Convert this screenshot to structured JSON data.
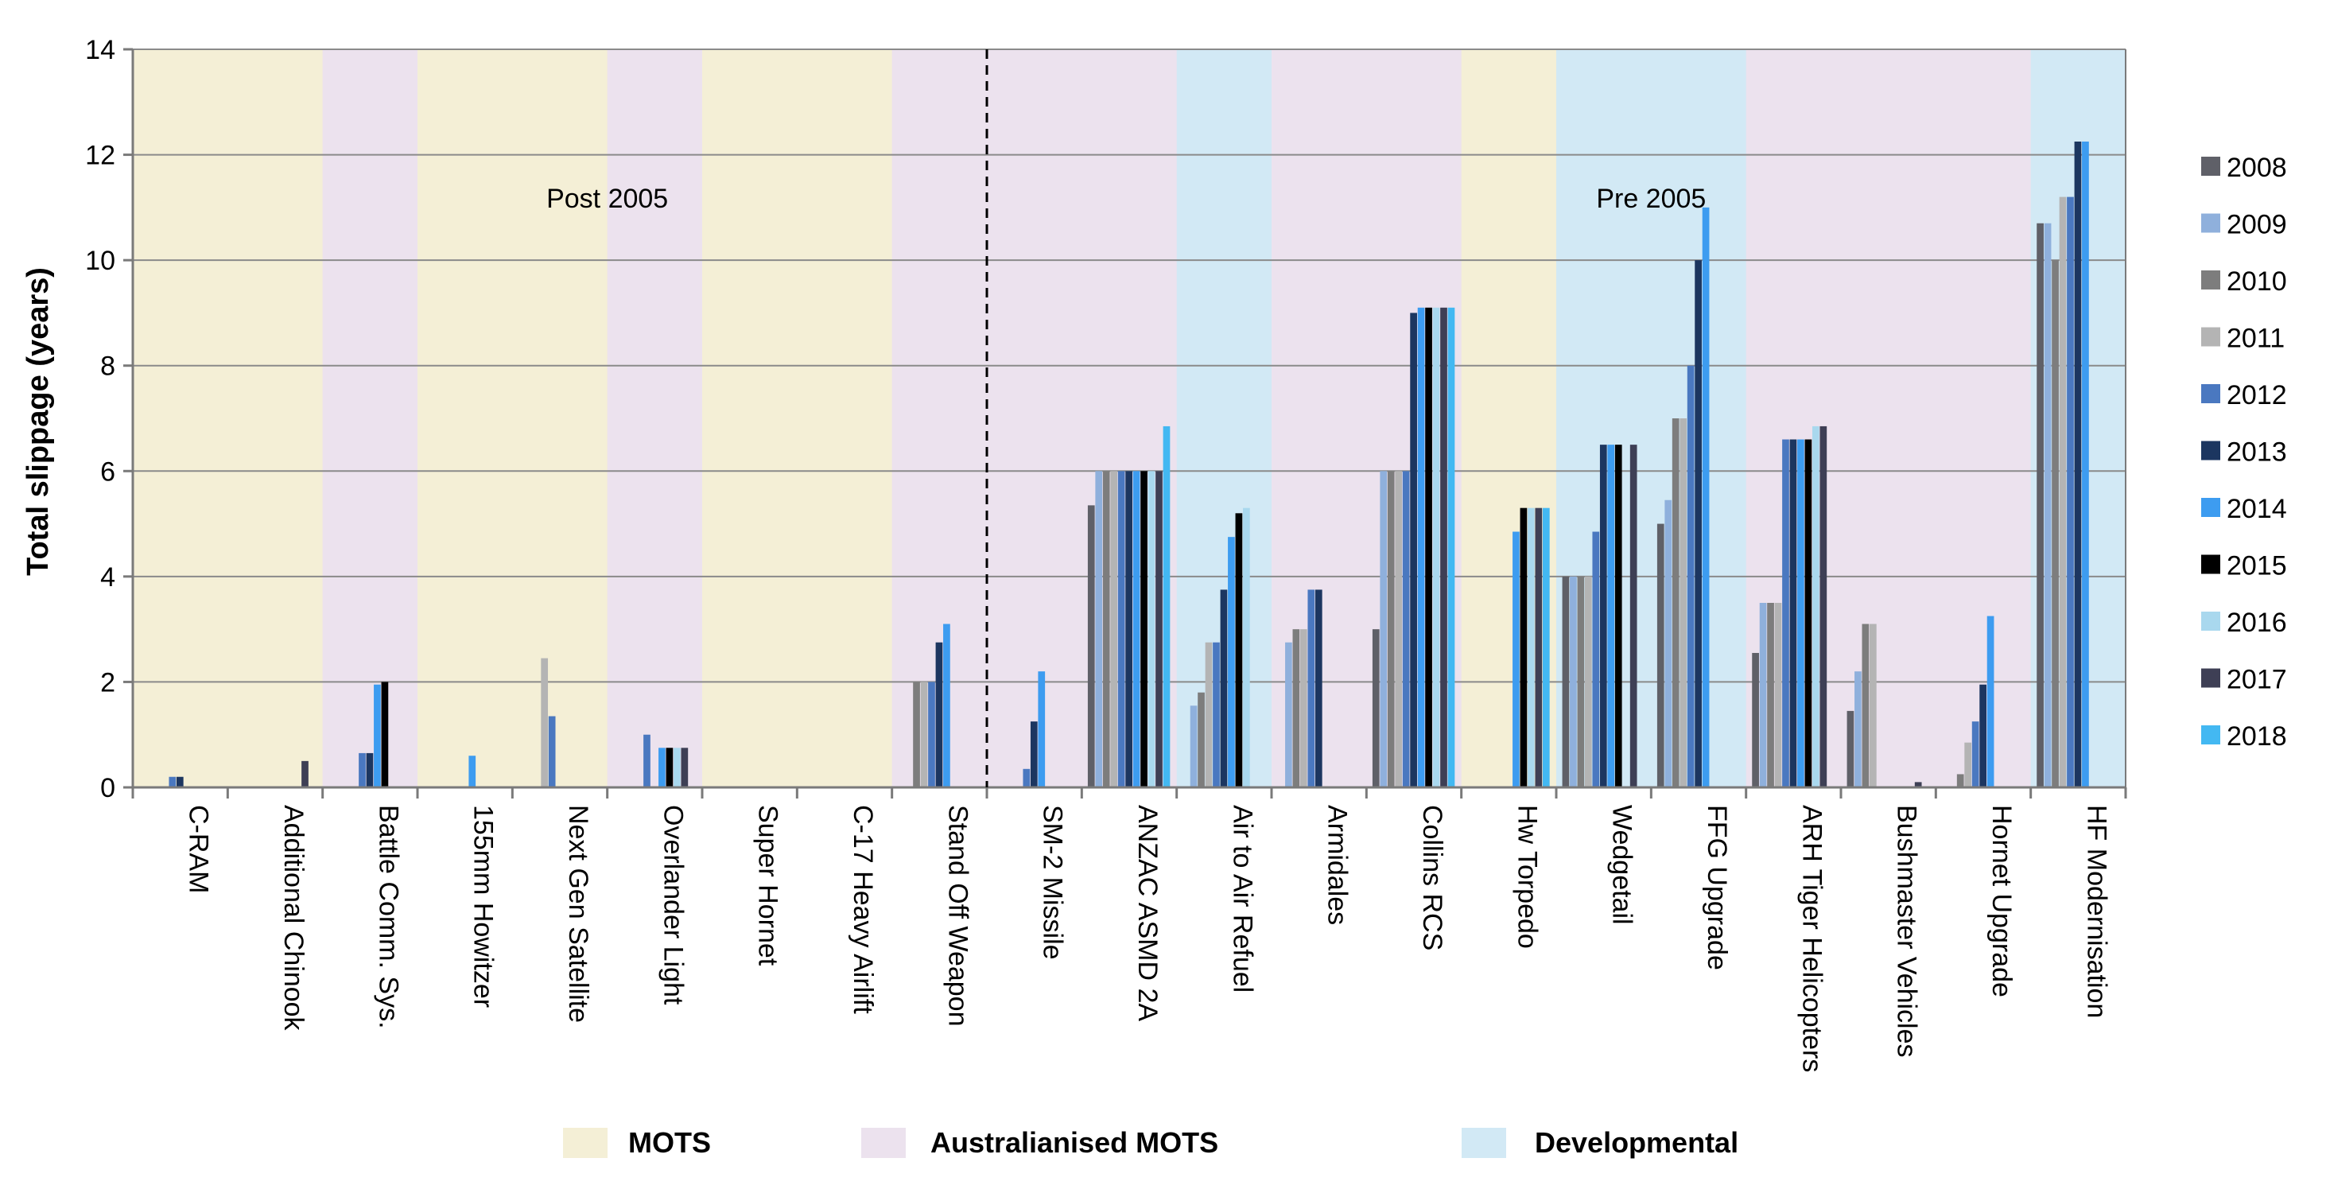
{
  "chart_data": {
    "type": "bar",
    "title": "",
    "ylabel": "Total slippage (years)",
    "xlabel": "",
    "ylim": [
      0,
      14
    ],
    "yticks": [
      0,
      2,
      4,
      6,
      8,
      10,
      12,
      14
    ],
    "ytick_labels": [
      "0",
      "2",
      "4",
      "6",
      "8",
      "10",
      "12",
      "14"
    ],
    "grid": true,
    "legend_position": "right",
    "categories": [
      "C-RAM",
      "Additional Chinook",
      "Battle Comm. Sys.",
      "155mm Howitzer",
      "Next Gen Satellite",
      "Overlander Light",
      "Super Hornet",
      "C-17 Heavy Airlift",
      "Stand Off Weapon",
      "SM-2 Missile",
      "ANZAC ASMD 2A",
      "Air to Air Refuel",
      "Armidales",
      "Collins RCS",
      "Hw Torpedo",
      "Wedgetail",
      "FFG Upgrade",
      "ARH Tiger Helicopters",
      "Bushmaster Vehicles",
      "Hornet Upgrade",
      "HF Modernisation"
    ],
    "category_types": [
      "MOTS",
      "MOTS",
      "Australianised MOTS",
      "MOTS",
      "MOTS",
      "Australianised MOTS",
      "MOTS",
      "MOTS",
      "Australianised MOTS",
      "Australianised MOTS",
      "Australianised MOTS",
      "Developmental",
      "Australianised MOTS",
      "Australianised MOTS",
      "MOTS",
      "Developmental",
      "Developmental",
      "Australianised MOTS",
      "Australianised MOTS",
      "Australianised MOTS",
      "Developmental"
    ],
    "annotations": [
      {
        "text": "Post 2005",
        "category_index": 4.5
      },
      {
        "text": "Pre 2005",
        "category_index": 15.5
      }
    ],
    "divider_after_category": 8,
    "series": [
      {
        "name": "2008",
        "color": "#5f6068",
        "values": [
          0,
          0,
          0,
          0,
          0,
          0,
          0,
          0,
          0,
          0,
          5.35,
          0,
          0,
          3.0,
          0,
          4.0,
          5.0,
          2.55,
          1.45,
          0,
          10.7
        ]
      },
      {
        "name": "2009",
        "color": "#8fb0dc",
        "values": [
          0,
          0,
          0,
          0,
          0,
          0,
          0,
          0,
          0,
          0,
          6.0,
          1.55,
          2.75,
          6.0,
          0,
          4.0,
          5.45,
          3.5,
          2.2,
          0,
          10.7
        ]
      },
      {
        "name": "2010",
        "color": "#7d7d7d",
        "values": [
          0,
          0,
          0,
          0,
          0,
          0,
          0,
          0,
          2.0,
          0,
          6.0,
          1.8,
          3.0,
          6.0,
          0,
          4.0,
          7.0,
          3.5,
          3.1,
          0.25,
          10.0
        ]
      },
      {
        "name": "2011",
        "color": "#b4b4b4",
        "values": [
          0,
          0,
          0,
          0,
          2.45,
          0,
          0,
          0,
          2.0,
          0,
          6.0,
          2.75,
          3.0,
          6.0,
          0,
          4.0,
          7.0,
          3.5,
          3.1,
          0.85,
          11.2
        ]
      },
      {
        "name": "2012",
        "color": "#4a78c0",
        "values": [
          0.2,
          0,
          0.65,
          0,
          1.35,
          1.0,
          0,
          0,
          2.0,
          0.35,
          6.0,
          2.75,
          3.75,
          6.0,
          0,
          4.85,
          8.0,
          6.6,
          0,
          1.25,
          11.2
        ]
      },
      {
        "name": "2013",
        "color": "#1c3660",
        "values": [
          0.2,
          0,
          0.65,
          0,
          0,
          0,
          0,
          0,
          2.75,
          1.25,
          6.0,
          3.75,
          3.75,
          9.0,
          0,
          6.5,
          10.0,
          6.6,
          0,
          1.95,
          12.25
        ]
      },
      {
        "name": "2014",
        "color": "#3d9cf0",
        "values": [
          0,
          0,
          1.95,
          0.6,
          0,
          0.75,
          0,
          0,
          3.1,
          2.2,
          6.0,
          4.75,
          0,
          9.1,
          4.85,
          6.5,
          11.0,
          6.6,
          0,
          3.25,
          12.25
        ]
      },
      {
        "name": "2015",
        "color": "#000000",
        "values": [
          0,
          0,
          2.0,
          0,
          0,
          0.75,
          0,
          0,
          0,
          0,
          6.0,
          5.2,
          0,
          9.1,
          5.3,
          6.5,
          0,
          6.6,
          0,
          0,
          0
        ]
      },
      {
        "name": "2016",
        "color": "#a9d8ee",
        "values": [
          0,
          0,
          0,
          0,
          0,
          0.75,
          0,
          0,
          0,
          0,
          6.0,
          5.3,
          0,
          9.1,
          5.3,
          0,
          0,
          6.85,
          0,
          0,
          0
        ]
      },
      {
        "name": "2017",
        "color": "#3e3f55",
        "values": [
          0,
          0.5,
          0,
          0,
          0,
          0.75,
          0,
          0,
          0,
          0,
          6.0,
          0,
          0,
          9.1,
          5.3,
          6.5,
          0,
          6.85,
          0.1,
          0,
          0
        ]
      },
      {
        "name": "2018",
        "color": "#43b8f2",
        "values": [
          0,
          0,
          0,
          0,
          0,
          0,
          0,
          0,
          0,
          0,
          6.85,
          0,
          0,
          9.1,
          5.3,
          0,
          0,
          0,
          0,
          0,
          0
        ]
      }
    ],
    "category_legend": [
      {
        "label": "MOTS",
        "color": "#f4efd6"
      },
      {
        "label": "Australianised MOTS",
        "color": "#ece2ee"
      },
      {
        "label": "Developmental",
        "color": "#d2e9f5"
      }
    ]
  }
}
